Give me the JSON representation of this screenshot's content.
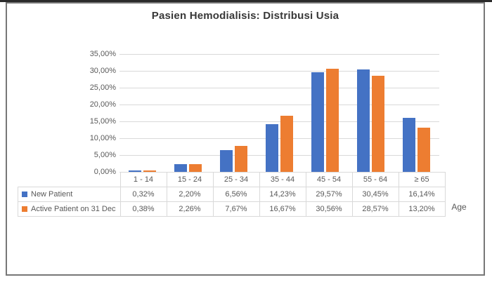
{
  "title": "Pasien Hemodialisis: Distribusi Usia",
  "chart_data": {
    "type": "bar",
    "title": "Pasien Hemodialisis: Distribusi Usia",
    "xlabel": "Age",
    "ylabel": "",
    "ylim": [
      0,
      35
    ],
    "ytick_step": 5,
    "ytick_labels": [
      "35,00%",
      "30,00%",
      "25,00%",
      "20,00%",
      "15,00%",
      "10,00%",
      "5,00%",
      "0,00%"
    ],
    "grid": true,
    "legend_position": "table-left",
    "categories": [
      "1 - 14",
      "15 - 24",
      "25 - 34",
      "35 - 44",
      "45 - 54",
      "55 - 64",
      "≥ 65"
    ],
    "series": [
      {
        "name": "New Patient",
        "color": "#4472C4",
        "values": [
          0.32,
          2.2,
          6.56,
          14.23,
          29.57,
          30.45,
          16.14
        ],
        "labels": [
          "0,32%",
          "2,20%",
          "6,56%",
          "14,23%",
          "29,57%",
          "30,45%",
          "16,14%"
        ]
      },
      {
        "name": "Active Patient on 31 Dec",
        "color": "#ED7D31",
        "values": [
          0.38,
          2.26,
          7.67,
          16.67,
          30.56,
          28.57,
          13.2
        ],
        "labels": [
          "0,38%",
          "2,26%",
          "7,67%",
          "16,67%",
          "30,56%",
          "28,57%",
          "13,20%"
        ]
      }
    ]
  }
}
